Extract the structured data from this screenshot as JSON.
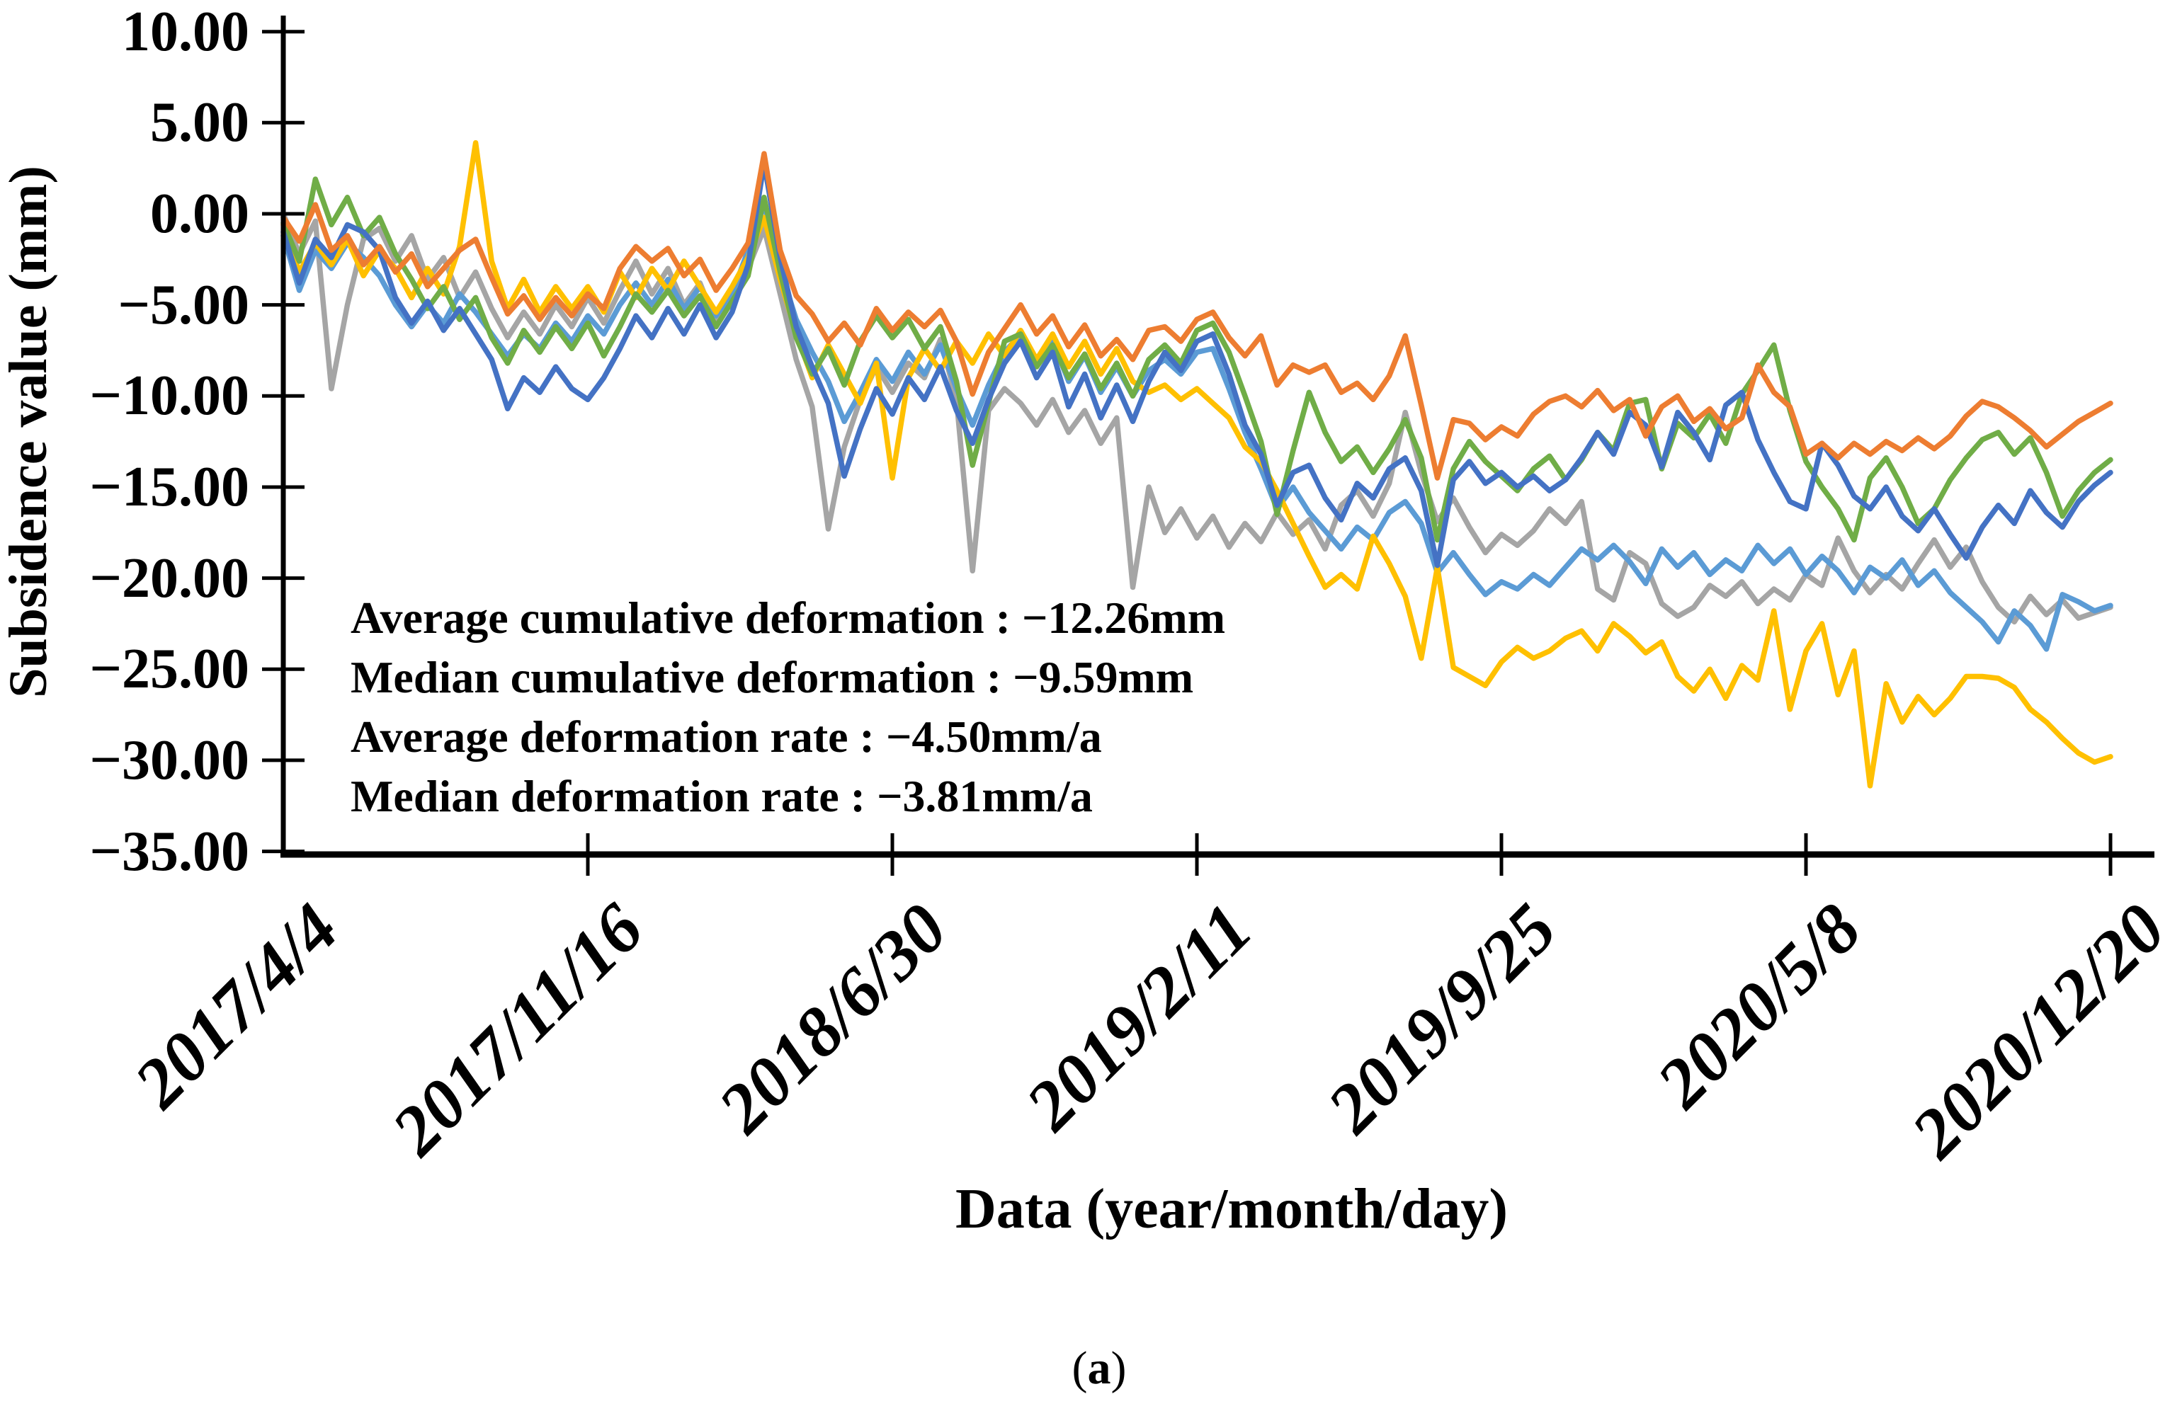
{
  "figure": {
    "y_axis": {
      "title": "Subsidence value (mm)",
      "tick_labels": [
        "10.00",
        "5.00",
        "0.00",
        "−5.00",
        "−10.00",
        "−15.00",
        "−20.00",
        "−25.00",
        "−30.00",
        "−35.00"
      ]
    },
    "x_axis": {
      "title": "Data (year/month/day)",
      "tick_labels": [
        "2017/4/4",
        "2017/11/16",
        "2018/6/30",
        "2019/2/11",
        "2019/9/25",
        "2020/5/8",
        "2020/12/20"
      ]
    },
    "annotations": [
      "Average cumulative deformation : −12.26mm",
      "Median cumulative deformation : −9.59mm",
      "Average deformation rate : −4.50mm/a",
      "Median deformation rate : −3.81mm/a"
    ],
    "caption": {
      "prefix": "(",
      "letter": "a",
      "suffix": ")"
    },
    "colors": {
      "axis": "#000000",
      "background": "#ffffff"
    }
  },
  "chart_data": {
    "type": "line",
    "xlabel": "Data (year/month/day)",
    "ylabel": "Subsidence value (mm)",
    "ylim": [
      -35,
      10
    ],
    "y_ticks": [
      10,
      5,
      0,
      -5,
      -10,
      -15,
      -20,
      -25,
      -30,
      -35
    ],
    "x_tick_labels": [
      "2017/4/4",
      "2017/11/16",
      "2018/6/30",
      "2019/2/11",
      "2019/9/25",
      "2020/5/8",
      "2020/12/20"
    ],
    "x_tick_indices": [
      0,
      19,
      38,
      57,
      76,
      95,
      114
    ],
    "n_points": 115,
    "grid": false,
    "legend_position": "none",
    "series": [
      {
        "name": "gray",
        "color": "#A5A5A5",
        "values": [
          0.0,
          -2.2,
          -0.4,
          -9.6,
          -5.0,
          -1.4,
          -0.8,
          -2.6,
          -1.2,
          -3.6,
          -2.4,
          -4.6,
          -3.2,
          -5.2,
          -6.8,
          -5.4,
          -6.6,
          -5.0,
          -6.2,
          -4.6,
          -6.0,
          -4.2,
          -2.6,
          -4.4,
          -3.0,
          -5.0,
          -3.8,
          -6.0,
          -4.6,
          -3.0,
          -0.8,
          -4.4,
          -8.0,
          -10.6,
          -17.3,
          -12.8,
          -10.2,
          -8.4,
          -9.8,
          -8.2,
          -9.0,
          -6.9,
          -10.2,
          -19.6,
          -10.8,
          -9.6,
          -10.4,
          -11.6,
          -10.2,
          -12.0,
          -10.8,
          -12.6,
          -11.2,
          -20.5,
          -15.0,
          -17.5,
          -16.2,
          -17.8,
          -16.6,
          -18.3,
          -17.0,
          -18.0,
          -16.4,
          -17.6,
          -16.8,
          -18.4,
          -16.0,
          -15.2,
          -16.6,
          -14.8,
          -10.9,
          -14.2,
          -16.9,
          -15.6,
          -17.2,
          -18.6,
          -17.6,
          -18.2,
          -17.4,
          -16.2,
          -17.0,
          -15.8,
          -20.6,
          -21.2,
          -18.6,
          -19.2,
          -21.4,
          -22.1,
          -21.6,
          -20.4,
          -21.0,
          -20.2,
          -21.4,
          -20.6,
          -21.2,
          -19.8,
          -20.4,
          -17.8,
          -19.6,
          -20.8,
          -19.8,
          -20.6,
          -19.2,
          -17.9,
          -19.4,
          -18.3,
          -20.2,
          -21.6,
          -22.4,
          -21.0,
          -22.0,
          -21.2,
          -22.2,
          -21.9,
          -21.6
        ]
      },
      {
        "name": "lightblue",
        "color": "#5B9BD5",
        "values": [
          -1.2,
          -4.2,
          -2.0,
          -3.0,
          -1.6,
          -2.4,
          -3.4,
          -5.0,
          -6.2,
          -5.0,
          -6.0,
          -4.4,
          -5.4,
          -6.6,
          -7.8,
          -6.6,
          -7.4,
          -6.0,
          -7.0,
          -5.6,
          -6.6,
          -5.0,
          -3.8,
          -5.0,
          -3.6,
          -5.2,
          -4.0,
          -5.6,
          -4.4,
          -2.0,
          0.5,
          -3.0,
          -5.8,
          -7.6,
          -9.2,
          -11.4,
          -9.8,
          -8.0,
          -9.2,
          -7.6,
          -8.8,
          -7.2,
          -9.6,
          -11.6,
          -9.4,
          -7.6,
          -6.6,
          -8.2,
          -7.0,
          -9.2,
          -7.8,
          -9.8,
          -8.4,
          -10.0,
          -8.6,
          -8.0,
          -8.8,
          -7.6,
          -7.4,
          -9.6,
          -12.0,
          -14.0,
          -16.2,
          -15.0,
          -16.4,
          -17.4,
          -18.4,
          -17.2,
          -17.9,
          -16.4,
          -15.8,
          -17.0,
          -19.7,
          -18.6,
          -19.8,
          -20.9,
          -20.2,
          -20.6,
          -19.8,
          -20.4,
          -19.4,
          -18.4,
          -19.0,
          -18.2,
          -19.1,
          -20.3,
          -18.4,
          -19.4,
          -18.6,
          -19.8,
          -19.0,
          -19.6,
          -18.2,
          -19.2,
          -18.4,
          -19.8,
          -18.8,
          -19.6,
          -20.8,
          -19.4,
          -20.0,
          -19.0,
          -20.4,
          -19.6,
          -20.8,
          -21.6,
          -22.4,
          -23.5,
          -21.8,
          -22.6,
          -23.9,
          -20.9,
          -21.3,
          -21.8,
          -21.5
        ]
      },
      {
        "name": "yellow",
        "color": "#FFC000",
        "values": [
          -0.6,
          -3.2,
          -1.6,
          -2.8,
          -1.4,
          -3.4,
          -2.0,
          -3.0,
          -4.6,
          -3.0,
          -4.4,
          -1.8,
          3.9,
          -2.6,
          -5.2,
          -3.6,
          -5.4,
          -4.0,
          -5.2,
          -4.0,
          -5.4,
          -3.2,
          -4.6,
          -3.0,
          -4.2,
          -2.6,
          -4.0,
          -5.4,
          -4.0,
          -2.4,
          -0.2,
          -3.6,
          -6.6,
          -9.0,
          -7.2,
          -8.8,
          -10.4,
          -8.2,
          -14.5,
          -9.0,
          -7.4,
          -8.6,
          -7.0,
          -8.2,
          -6.6,
          -7.8,
          -6.4,
          -8.0,
          -6.6,
          -8.4,
          -7.0,
          -8.8,
          -7.4,
          -9.2,
          -9.8,
          -9.4,
          -10.2,
          -9.6,
          -10.4,
          -11.2,
          -12.8,
          -13.6,
          -15.2,
          -17.0,
          -18.8,
          -20.5,
          -19.8,
          -20.6,
          -17.7,
          -19.2,
          -21.0,
          -24.4,
          -19.4,
          -24.9,
          -25.4,
          -25.9,
          -24.6,
          -23.8,
          -24.4,
          -24.0,
          -23.3,
          -22.9,
          -24.0,
          -22.5,
          -23.2,
          -24.1,
          -23.5,
          -25.4,
          -26.2,
          -25.0,
          -26.6,
          -24.8,
          -25.6,
          -21.8,
          -27.2,
          -24.0,
          -22.5,
          -26.4,
          -24.0,
          -31.4,
          -25.8,
          -27.9,
          -26.5,
          -27.5,
          -26.6,
          -25.4,
          -25.4,
          -25.5,
          -26.0,
          -27.2,
          -27.9,
          -28.8,
          -29.6,
          -30.1,
          -29.8
        ]
      },
      {
        "name": "green",
        "color": "#70AD47",
        "values": [
          -0.5,
          -2.6,
          1.9,
          -0.6,
          0.9,
          -1.2,
          -0.2,
          -2.2,
          -3.6,
          -5.2,
          -4.0,
          -5.8,
          -4.6,
          -6.8,
          -8.2,
          -6.4,
          -7.6,
          -6.2,
          -7.4,
          -6.0,
          -7.8,
          -6.2,
          -4.4,
          -5.4,
          -4.2,
          -5.6,
          -4.5,
          -6.2,
          -4.8,
          -3.4,
          0.9,
          -3.2,
          -6.8,
          -8.8,
          -7.4,
          -9.4,
          -7.0,
          -5.6,
          -6.8,
          -5.8,
          -7.4,
          -6.2,
          -9.2,
          -13.8,
          -10.4,
          -7.0,
          -6.6,
          -8.4,
          -7.2,
          -9.0,
          -7.7,
          -9.6,
          -8.2,
          -10.0,
          -8.0,
          -7.2,
          -8.2,
          -6.4,
          -6.0,
          -7.6,
          -10.0,
          -12.5,
          -16.5,
          -13.0,
          -9.8,
          -12.0,
          -13.6,
          -12.8,
          -14.2,
          -12.9,
          -11.3,
          -13.4,
          -17.9,
          -14.0,
          -12.5,
          -13.6,
          -14.4,
          -15.2,
          -14.0,
          -13.3,
          -14.6,
          -13.5,
          -12.0,
          -13.0,
          -10.4,
          -10.2,
          -14.0,
          -11.5,
          -12.3,
          -11.0,
          -12.6,
          -9.9,
          -8.6,
          -7.2,
          -10.8,
          -13.6,
          -15.0,
          -16.2,
          -17.9,
          -14.5,
          -13.4,
          -15.0,
          -17.0,
          -16.2,
          -14.6,
          -13.4,
          -12.4,
          -12.0,
          -13.2,
          -12.3,
          -14.2,
          -16.6,
          -15.2,
          -14.2,
          -13.5
        ]
      },
      {
        "name": "blue",
        "color": "#4472C4",
        "values": [
          -1.0,
          -3.8,
          -1.4,
          -2.4,
          -0.6,
          -1.0,
          -2.0,
          -4.6,
          -6.0,
          -4.8,
          -6.4,
          -5.2,
          -6.6,
          -8.0,
          -10.7,
          -9.0,
          -9.8,
          -8.4,
          -9.6,
          -10.2,
          -9.0,
          -7.4,
          -5.6,
          -6.8,
          -5.2,
          -6.6,
          -5.0,
          -6.8,
          -5.4,
          -2.8,
          2.8,
          -2.4,
          -6.2,
          -8.4,
          -10.4,
          -14.4,
          -11.8,
          -9.6,
          -11.0,
          -9.0,
          -10.2,
          -8.4,
          -10.8,
          -12.6,
          -10.2,
          -8.2,
          -7.0,
          -9.0,
          -7.6,
          -10.6,
          -8.8,
          -11.2,
          -9.4,
          -11.4,
          -9.2,
          -7.6,
          -8.6,
          -7.0,
          -6.6,
          -8.8,
          -11.6,
          -13.2,
          -16.0,
          -14.2,
          -13.8,
          -15.6,
          -16.8,
          -14.8,
          -15.6,
          -14.0,
          -13.4,
          -15.2,
          -19.3,
          -14.6,
          -13.6,
          -14.8,
          -14.2,
          -15.0,
          -14.4,
          -15.2,
          -14.6,
          -13.4,
          -12.0,
          -13.2,
          -10.9,
          -11.6,
          -13.9,
          -10.9,
          -12.0,
          -13.5,
          -10.5,
          -9.8,
          -12.4,
          -14.2,
          -15.8,
          -16.2,
          -12.6,
          -13.8,
          -15.5,
          -16.2,
          -15.0,
          -16.6,
          -17.4,
          -16.2,
          -17.6,
          -18.9,
          -17.2,
          -16.0,
          -17.0,
          -15.2,
          -16.4,
          -17.2,
          -15.8,
          -14.9,
          -14.2
        ]
      },
      {
        "name": "orange",
        "color": "#ED7D31",
        "values": [
          -0.2,
          -1.5,
          0.5,
          -2.0,
          -1.2,
          -2.8,
          -1.8,
          -3.2,
          -2.2,
          -4.0,
          -3.0,
          -2.0,
          -1.4,
          -3.5,
          -5.5,
          -4.5,
          -5.8,
          -4.6,
          -5.6,
          -4.4,
          -5.2,
          -3.0,
          -1.8,
          -2.6,
          -1.9,
          -3.4,
          -2.5,
          -4.2,
          -3.0,
          -1.6,
          3.3,
          -2.0,
          -4.5,
          -5.5,
          -7.0,
          -6.0,
          -7.2,
          -5.2,
          -6.4,
          -5.4,
          -6.2,
          -5.3,
          -7.0,
          -9.9,
          -7.6,
          -6.3,
          -5.0,
          -6.6,
          -5.6,
          -7.3,
          -6.1,
          -7.8,
          -6.9,
          -8.0,
          -6.4,
          -6.2,
          -7.0,
          -5.8,
          -5.4,
          -6.8,
          -7.8,
          -6.7,
          -9.4,
          -8.3,
          -8.7,
          -8.3,
          -9.8,
          -9.3,
          -10.2,
          -8.9,
          -6.7,
          -10.5,
          -14.5,
          -11.3,
          -11.5,
          -12.4,
          -11.7,
          -12.2,
          -11.0,
          -10.3,
          -10.0,
          -10.6,
          -9.7,
          -10.8,
          -10.2,
          -12.2,
          -10.6,
          -10.0,
          -11.4,
          -10.7,
          -11.8,
          -11.2,
          -8.3,
          -9.8,
          -10.6,
          -13.2,
          -12.6,
          -13.4,
          -12.6,
          -13.2,
          -12.5,
          -13.0,
          -12.3,
          -12.9,
          -12.2,
          -11.1,
          -10.3,
          -10.6,
          -11.2,
          -11.9,
          -12.8,
          -12.1,
          -11.4,
          -10.9,
          -10.4
        ]
      }
    ]
  }
}
